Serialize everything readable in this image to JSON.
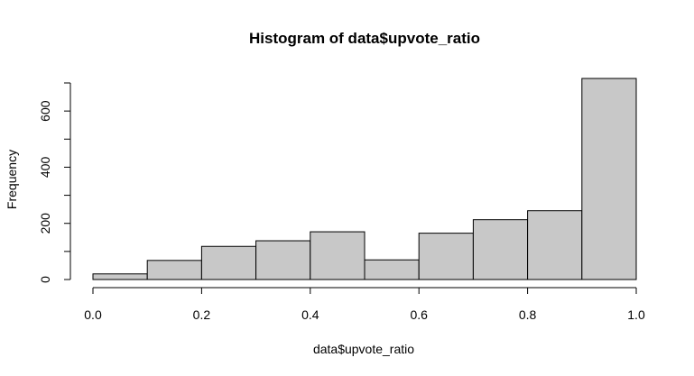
{
  "chart_data": {
    "type": "bar",
    "title": "Histogram of data$upvote_ratio",
    "xlabel": "data$upvote_ratio",
    "ylabel": "Frequency",
    "bins": [
      {
        "x0": 0.0,
        "x1": 0.1,
        "count": 20
      },
      {
        "x0": 0.1,
        "x1": 0.2,
        "count": 68
      },
      {
        "x0": 0.2,
        "x1": 0.3,
        "count": 118
      },
      {
        "x0": 0.3,
        "x1": 0.4,
        "count": 138
      },
      {
        "x0": 0.4,
        "x1": 0.5,
        "count": 170
      },
      {
        "x0": 0.5,
        "x1": 0.6,
        "count": 70
      },
      {
        "x0": 0.6,
        "x1": 0.7,
        "count": 165
      },
      {
        "x0": 0.7,
        "x1": 0.8,
        "count": 213
      },
      {
        "x0": 0.8,
        "x1": 0.9,
        "count": 245
      },
      {
        "x0": 0.9,
        "x1": 1.0,
        "count": 716
      }
    ],
    "xlim": [
      0.0,
      1.0
    ],
    "ylim": [
      0,
      700
    ],
    "x_ticks": [
      0.0,
      0.2,
      0.4,
      0.6,
      0.8,
      1.0
    ],
    "x_tick_labels": [
      "0.0",
      "0.2",
      "0.4",
      "0.6",
      "0.8",
      "1.0"
    ],
    "y_major_ticks": [
      0,
      200,
      400,
      600
    ],
    "y_tick_labels": [
      "0",
      "200",
      "400",
      "600"
    ],
    "y_minor_ticks": [
      100,
      300,
      500,
      700
    ],
    "grid": false,
    "bar_color": "#c8c8c8",
    "edge_color": "#000000"
  }
}
